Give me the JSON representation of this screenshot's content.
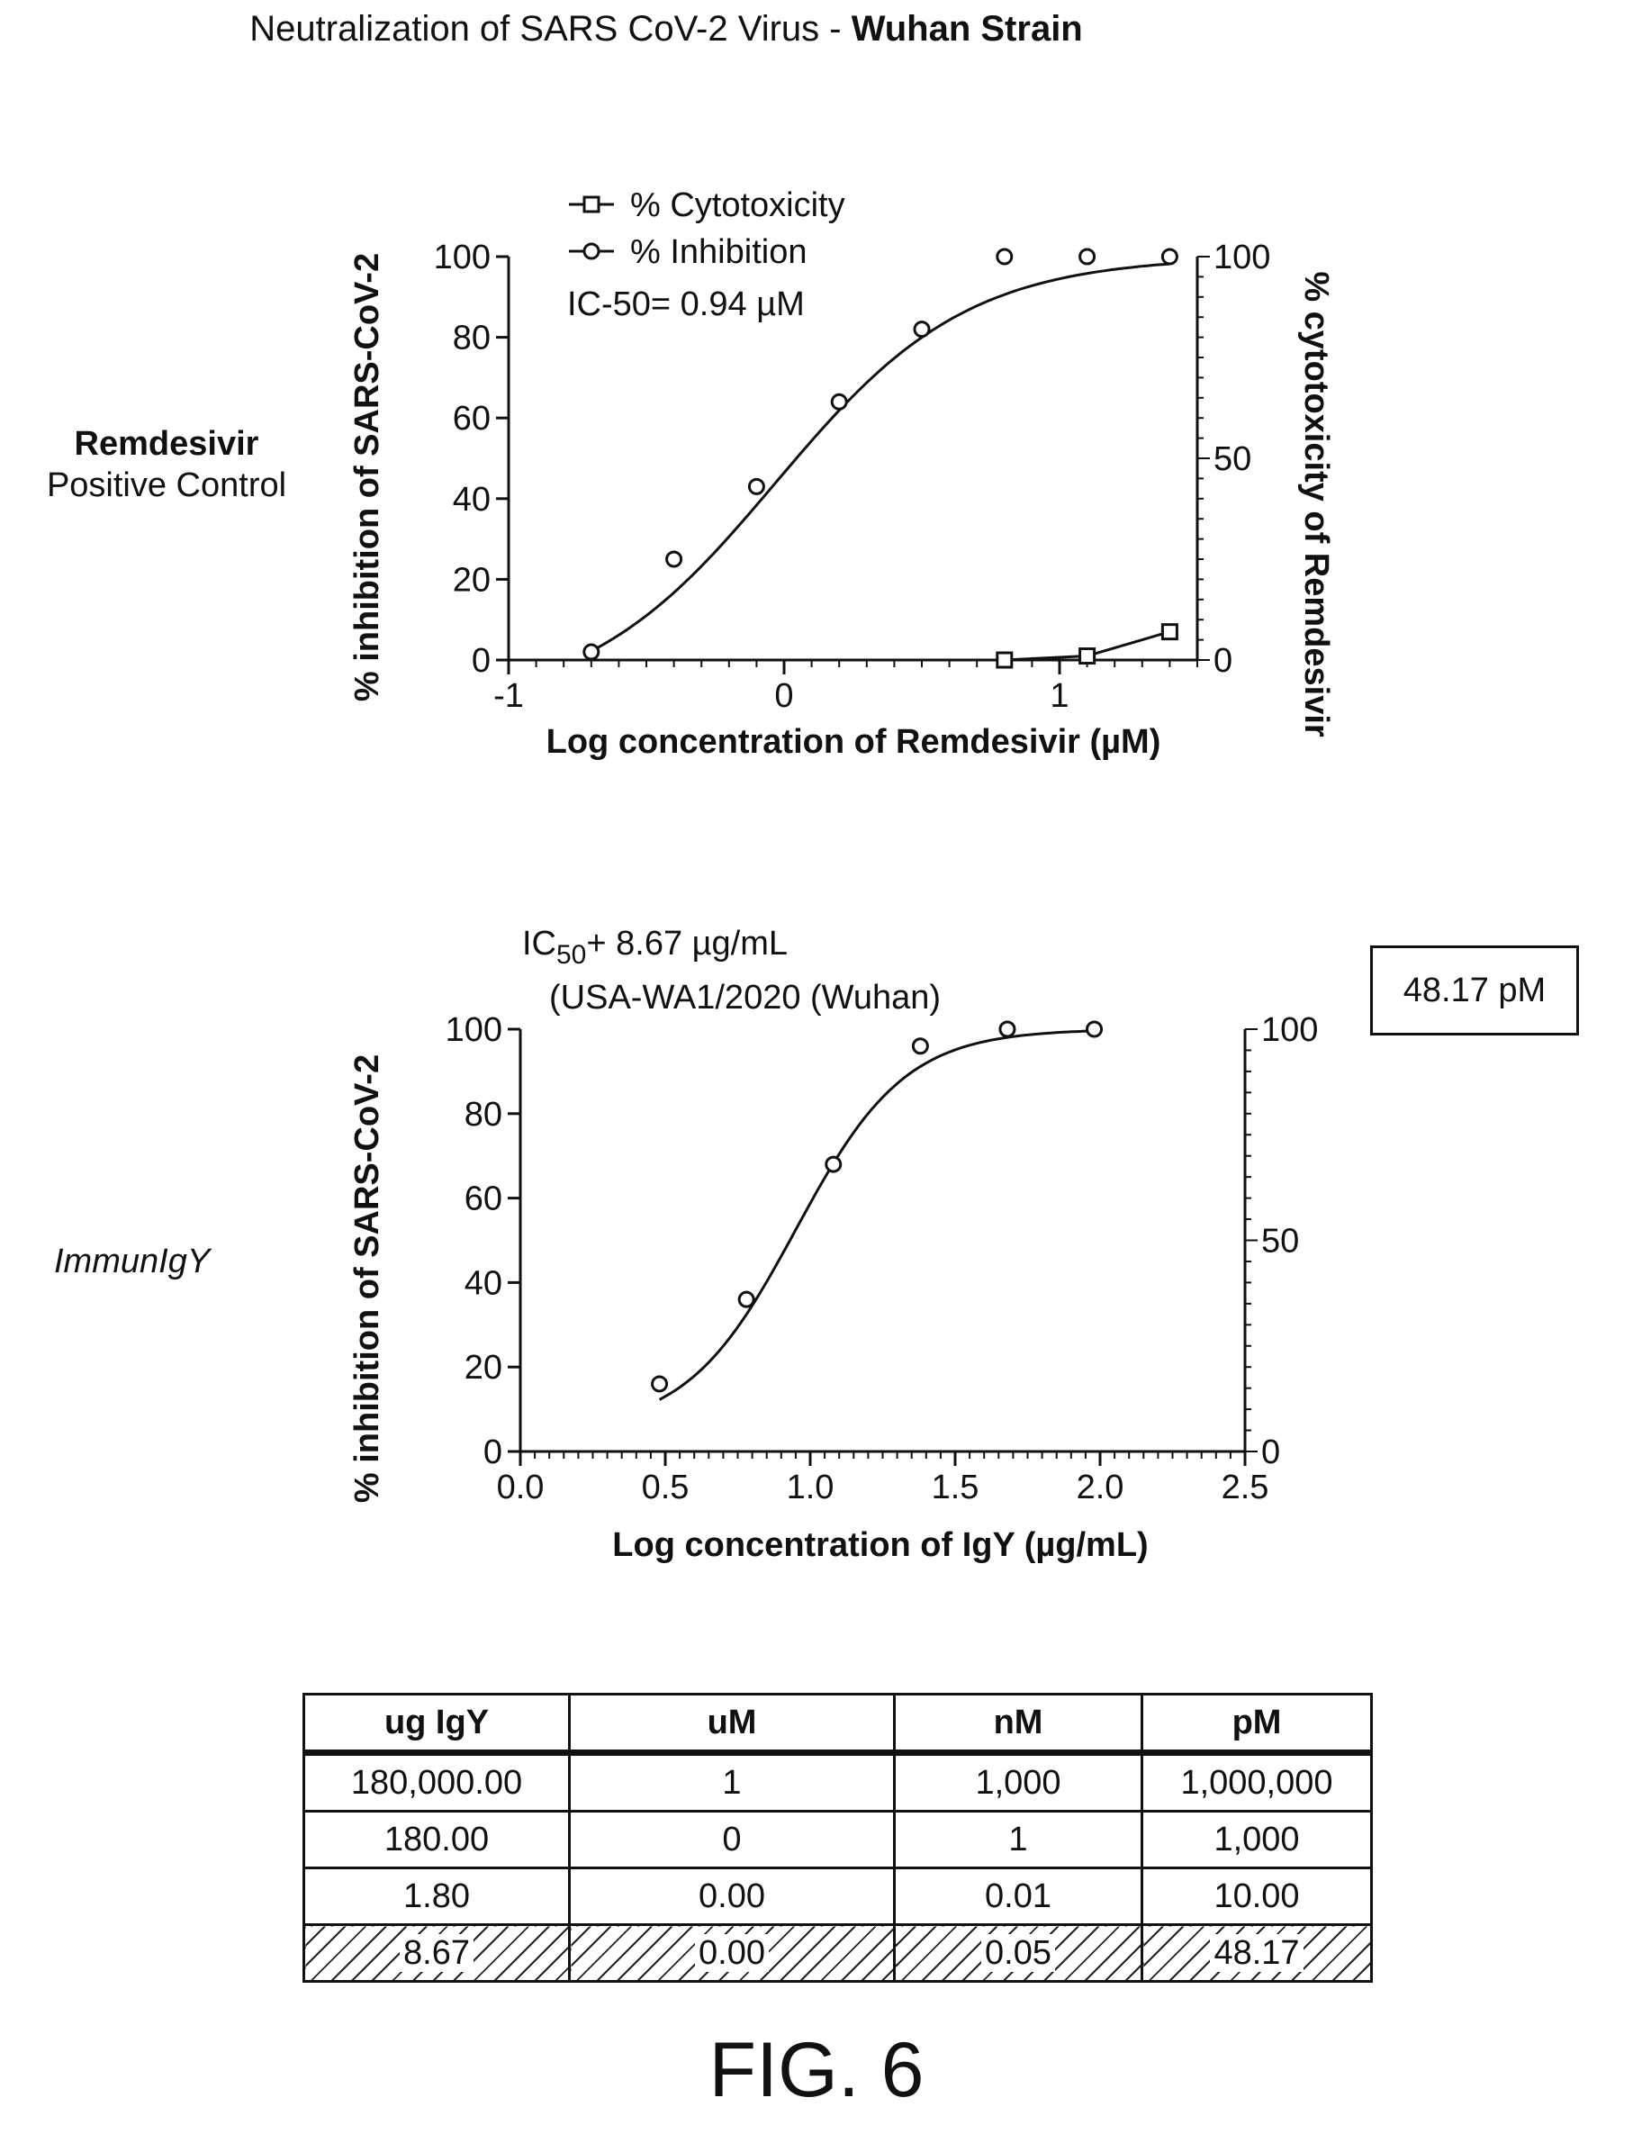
{
  "page_title": {
    "normal": "Neutralization of SARS CoV-2 Virus - ",
    "bold": "Wuhan Strain"
  },
  "figure_label": "FIG. 6",
  "panels": [
    {
      "name_bold": "Remdesivir",
      "name_sub": "Positive Control"
    },
    {
      "name_italic": "ImmunIgY",
      "pm_box": "48.17 pM"
    }
  ],
  "chart_data": [
    {
      "type": "scatter",
      "xlabel": "Log concentration of Remdesivir (µM)",
      "ylabel": "% inhibition of SARS-CoV-2",
      "y2label": "% cytotoxicity of Remdesivir",
      "xlim": [
        -1,
        1.5
      ],
      "ylim": [
        0,
        100
      ],
      "y2lim": [
        0,
        100
      ],
      "x_ticks": [
        "-1",
        "0",
        "1"
      ],
      "y_ticks": [
        "0",
        "20",
        "40",
        "60",
        "80",
        "100"
      ],
      "y2_ticks": [
        "0",
        "50",
        "100"
      ],
      "annotation": "IC-50= 0.94 µM",
      "legend": [
        "% Cytotoxicity",
        "% Inhibition"
      ],
      "legend_position": "top-left",
      "series": [
        {
          "name": "% Inhibition",
          "marker": "circle",
          "x": [
            -0.7,
            -0.4,
            -0.1,
            0.2,
            0.5,
            0.8,
            1.1,
            1.4
          ],
          "y": [
            2,
            25,
            43,
            64,
            82,
            100,
            100,
            100
          ],
          "fit": "sigmoid"
        },
        {
          "name": "% Cytotoxicity",
          "marker": "square",
          "x": [
            0.8,
            1.1,
            1.4
          ],
          "y": [
            0,
            1,
            7
          ],
          "fit": "smooth"
        }
      ]
    },
    {
      "type": "scatter",
      "xlabel": "Log concentration of IgY (µg/mL)",
      "ylabel": "% inhibition of SARS-CoV-2",
      "xlim": [
        0,
        2.5
      ],
      "ylim": [
        0,
        100
      ],
      "y2lim": [
        0,
        100
      ],
      "x_ticks": [
        "0.0",
        "0.5",
        "1.0",
        "1.5",
        "2.0",
        "2.5"
      ],
      "y_ticks": [
        "0",
        "20",
        "40",
        "60",
        "80",
        "100"
      ],
      "y2_ticks": [
        "0",
        "50",
        "100"
      ],
      "annotation_line1": "IC",
      "annotation_sub": "50",
      "annotation_rest": "+ 8.67 µg/mL",
      "annotation_line2": "(USA-WA1/2020 (Wuhan)",
      "series": [
        {
          "marker": "circle",
          "x": [
            0.48,
            0.78,
            1.08,
            1.38,
            1.68,
            1.98
          ],
          "y": [
            16,
            36,
            68,
            96,
            100,
            100
          ],
          "fit": "sigmoid"
        }
      ]
    }
  ],
  "table": {
    "headers": [
      "ug IgY",
      "uM",
      "nM",
      "pM"
    ],
    "rows": [
      [
        "180,000.00",
        "1",
        "1,000",
        "1,000,000"
      ],
      [
        "180.00",
        "0",
        "1",
        "1,000"
      ],
      [
        "1.80",
        "0.00",
        "0.01",
        "10.00"
      ],
      [
        "8.67",
        "0.00",
        "0.05",
        "48.17"
      ]
    ]
  }
}
